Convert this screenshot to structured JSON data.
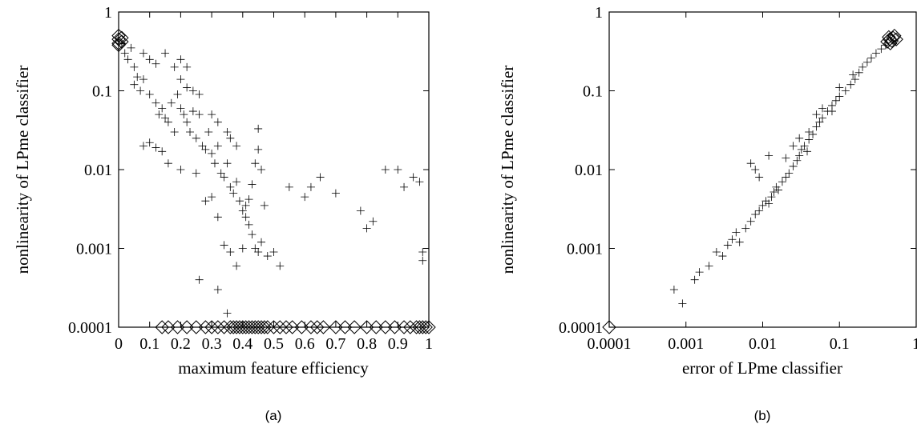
{
  "chart_data": [
    {
      "type": "scatter",
      "panel": "a",
      "caption": "(a)",
      "xlabel": "maximum feature efficiency",
      "ylabel": "nonlinearity of LPme classifier",
      "xlim": [
        0,
        1
      ],
      "ylim": [
        0.0001,
        1
      ],
      "x_scale": "linear",
      "y_scale": "log",
      "x_ticks": [
        0,
        0.1,
        0.2,
        0.3,
        0.4,
        0.5,
        0.6,
        0.7,
        0.8,
        0.9,
        1
      ],
      "x_tick_labels": [
        "0",
        "0.1",
        "0.2",
        "0.3",
        "0.4",
        "0.5",
        "0.6",
        "0.7",
        "0.8",
        "0.9",
        "1"
      ],
      "y_ticks": [
        0.0001,
        0.001,
        0.01,
        0.1,
        1
      ],
      "y_tick_labels": [
        "0.0001",
        "0.001",
        "0.01",
        "0.1",
        "1"
      ],
      "grid": false,
      "series": [
        {
          "marker": "plus",
          "points": [
            [
              0.01,
              0.4
            ],
            [
              0.02,
              0.3
            ],
            [
              0.03,
              0.25
            ],
            [
              0.04,
              0.35
            ],
            [
              0.05,
              0.2
            ],
            [
              0.06,
              0.15
            ],
            [
              0.08,
              0.3
            ],
            [
              0.1,
              0.25
            ],
            [
              0.12,
              0.22
            ],
            [
              0.15,
              0.3
            ],
            [
              0.18,
              0.2
            ],
            [
              0.2,
              0.25
            ],
            [
              0.22,
              0.2
            ],
            [
              0.05,
              0.12
            ],
            [
              0.07,
              0.1
            ],
            [
              0.08,
              0.14
            ],
            [
              0.1,
              0.09
            ],
            [
              0.12,
              0.07
            ],
            [
              0.13,
              0.05
            ],
            [
              0.14,
              0.06
            ],
            [
              0.15,
              0.045
            ],
            [
              0.16,
              0.04
            ],
            [
              0.17,
              0.07
            ],
            [
              0.18,
              0.03
            ],
            [
              0.19,
              0.09
            ],
            [
              0.2,
              0.06
            ],
            [
              0.21,
              0.05
            ],
            [
              0.22,
              0.04
            ],
            [
              0.23,
              0.03
            ],
            [
              0.24,
              0.055
            ],
            [
              0.25,
              0.025
            ],
            [
              0.26,
              0.05
            ],
            [
              0.27,
              0.02
            ],
            [
              0.28,
              0.018
            ],
            [
              0.29,
              0.03
            ],
            [
              0.3,
              0.016
            ],
            [
              0.31,
              0.012
            ],
            [
              0.32,
              0.02
            ],
            [
              0.33,
              0.009
            ],
            [
              0.34,
              0.008
            ],
            [
              0.35,
              0.012
            ],
            [
              0.36,
              0.006
            ],
            [
              0.37,
              0.005
            ],
            [
              0.38,
              0.007
            ],
            [
              0.39,
              0.004
            ],
            [
              0.4,
              0.003
            ],
            [
              0.41,
              0.0025
            ],
            [
              0.42,
              0.002
            ],
            [
              0.43,
              0.0015
            ],
            [
              0.44,
              0.001
            ],
            [
              0.45,
              0.0009
            ],
            [
              0.46,
              0.0012
            ],
            [
              0.47,
              0.0035
            ],
            [
              0.48,
              0.0008
            ],
            [
              0.5,
              0.0009
            ],
            [
              0.52,
              0.0006
            ],
            [
              0.08,
              0.02
            ],
            [
              0.1,
              0.022
            ],
            [
              0.12,
              0.019
            ],
            [
              0.14,
              0.017
            ],
            [
              0.16,
              0.012
            ],
            [
              0.2,
              0.01
            ],
            [
              0.25,
              0.009
            ],
            [
              0.28,
              0.004
            ],
            [
              0.3,
              0.0045
            ],
            [
              0.32,
              0.0025
            ],
            [
              0.34,
              0.0011
            ],
            [
              0.36,
              0.0009
            ],
            [
              0.26,
              0.0004
            ],
            [
              0.32,
              0.0003
            ],
            [
              0.35,
              0.00015
            ],
            [
              0.38,
              0.0006
            ],
            [
              0.4,
              0.001
            ],
            [
              0.41,
              0.0035
            ],
            [
              0.42,
              0.0042
            ],
            [
              0.45,
              0.033
            ],
            [
              0.45,
              0.018
            ],
            [
              0.44,
              0.012
            ],
            [
              0.43,
              0.0065
            ],
            [
              0.46,
              0.01
            ],
            [
              0.2,
              0.14
            ],
            [
              0.22,
              0.11
            ],
            [
              0.24,
              0.1
            ],
            [
              0.26,
              0.09
            ],
            [
              0.3,
              0.05
            ],
            [
              0.32,
              0.04
            ],
            [
              0.35,
              0.03
            ],
            [
              0.36,
              0.025
            ],
            [
              0.38,
              0.02
            ],
            [
              0.55,
              0.006
            ],
            [
              0.6,
              0.0045
            ],
            [
              0.62,
              0.006
            ],
            [
              0.65,
              0.008
            ],
            [
              0.7,
              0.005
            ],
            [
              0.78,
              0.003
            ],
            [
              0.8,
              0.0018
            ],
            [
              0.82,
              0.0022
            ],
            [
              0.86,
              0.01
            ],
            [
              0.9,
              0.01
            ],
            [
              0.92,
              0.006
            ],
            [
              0.95,
              0.008
            ],
            [
              0.97,
              0.007
            ],
            [
              0.98,
              0.0009
            ],
            [
              0.98,
              0.0007
            ]
          ]
        },
        {
          "marker": "diamond",
          "points": [
            [
              0.14,
              0.0001
            ],
            [
              0.16,
              0.0001
            ],
            [
              0.19,
              0.0001
            ],
            [
              0.22,
              0.0001
            ],
            [
              0.25,
              0.0001
            ],
            [
              0.28,
              0.0001
            ],
            [
              0.3,
              0.0001
            ],
            [
              0.32,
              0.0001
            ],
            [
              0.34,
              0.0001
            ],
            [
              0.36,
              0.0001
            ],
            [
              0.37,
              0.0001
            ],
            [
              0.38,
              0.0001
            ],
            [
              0.39,
              0.0001
            ],
            [
              0.4,
              0.0001
            ],
            [
              0.41,
              0.0001
            ],
            [
              0.42,
              0.0001
            ],
            [
              0.43,
              0.0001
            ],
            [
              0.44,
              0.0001
            ],
            [
              0.45,
              0.0001
            ],
            [
              0.46,
              0.0001
            ],
            [
              0.47,
              0.0001
            ],
            [
              0.48,
              0.0001
            ],
            [
              0.5,
              0.0001
            ],
            [
              0.52,
              0.0001
            ],
            [
              0.54,
              0.0001
            ],
            [
              0.56,
              0.0001
            ],
            [
              0.59,
              0.0001
            ],
            [
              0.62,
              0.0001
            ],
            [
              0.64,
              0.0001
            ],
            [
              0.66,
              0.0001
            ],
            [
              0.7,
              0.0001
            ],
            [
              0.73,
              0.0001
            ],
            [
              0.76,
              0.0001
            ],
            [
              0.8,
              0.0001
            ],
            [
              0.83,
              0.0001
            ],
            [
              0.86,
              0.0001
            ],
            [
              0.89,
              0.0001
            ],
            [
              0.92,
              0.0001
            ],
            [
              0.94,
              0.0001
            ],
            [
              0.96,
              0.0001
            ],
            [
              0.97,
              0.0001
            ],
            [
              0.98,
              0.0001
            ],
            [
              0.99,
              0.0001
            ],
            [
              1.0,
              0.0001
            ],
            [
              0.0,
              0.45
            ],
            [
              0.0,
              0.4
            ],
            [
              0.0,
              0.5
            ],
            [
              0.01,
              0.42
            ],
            [
              0.01,
              0.47
            ],
            [
              0.0,
              0.38
            ]
          ]
        }
      ]
    },
    {
      "type": "scatter",
      "panel": "b",
      "caption": "(b)",
      "xlabel": "error of LPme classifier",
      "ylabel": "nonlinearity of LPme classifier",
      "xlim": [
        0.0001,
        1
      ],
      "ylim": [
        0.0001,
        1
      ],
      "x_scale": "log",
      "y_scale": "log",
      "x_ticks": [
        0.0001,
        0.001,
        0.01,
        0.1,
        1
      ],
      "x_tick_labels": [
        "0.0001",
        "0.001",
        "0.01",
        "0.1",
        "1"
      ],
      "y_ticks": [
        0.0001,
        0.001,
        0.01,
        0.1,
        1
      ],
      "y_tick_labels": [
        "0.0001",
        "0.001",
        "0.01",
        "0.1",
        "1"
      ],
      "grid": false,
      "series": [
        {
          "marker": "plus",
          "points": [
            [
              0.0007,
              0.0003
            ],
            [
              0.0009,
              0.0002
            ],
            [
              0.0013,
              0.0004
            ],
            [
              0.0015,
              0.0005
            ],
            [
              0.002,
              0.0006
            ],
            [
              0.0025,
              0.0009
            ],
            [
              0.003,
              0.0008
            ],
            [
              0.0035,
              0.0011
            ],
            [
              0.004,
              0.0013
            ],
            [
              0.0045,
              0.0016
            ],
            [
              0.005,
              0.0012
            ],
            [
              0.006,
              0.0018
            ],
            [
              0.007,
              0.0022
            ],
            [
              0.008,
              0.0027
            ],
            [
              0.009,
              0.003
            ],
            [
              0.01,
              0.0035
            ],
            [
              0.011,
              0.004
            ],
            [
              0.012,
              0.0037
            ],
            [
              0.013,
              0.0045
            ],
            [
              0.014,
              0.0052
            ],
            [
              0.015,
              0.006
            ],
            [
              0.016,
              0.0055
            ],
            [
              0.018,
              0.007
            ],
            [
              0.02,
              0.008
            ],
            [
              0.022,
              0.009
            ],
            [
              0.025,
              0.011
            ],
            [
              0.028,
              0.013
            ],
            [
              0.03,
              0.015
            ],
            [
              0.032,
              0.018
            ],
            [
              0.035,
              0.02
            ],
            [
              0.038,
              0.017
            ],
            [
              0.04,
              0.024
            ],
            [
              0.045,
              0.028
            ],
            [
              0.05,
              0.035
            ],
            [
              0.055,
              0.04
            ],
            [
              0.06,
              0.045
            ],
            [
              0.07,
              0.055
            ],
            [
              0.08,
              0.065
            ],
            [
              0.09,
              0.075
            ],
            [
              0.1,
              0.085
            ],
            [
              0.12,
              0.1
            ],
            [
              0.14,
              0.12
            ],
            [
              0.16,
              0.14
            ],
            [
              0.18,
              0.17
            ],
            [
              0.2,
              0.2
            ],
            [
              0.23,
              0.23
            ],
            [
              0.26,
              0.26
            ],
            [
              0.3,
              0.3
            ],
            [
              0.35,
              0.34
            ],
            [
              0.4,
              0.38
            ],
            [
              0.007,
              0.012
            ],
            [
              0.008,
              0.01
            ],
            [
              0.009,
              0.008
            ],
            [
              0.012,
              0.015
            ],
            [
              0.02,
              0.014
            ],
            [
              0.025,
              0.02
            ],
            [
              0.03,
              0.025
            ],
            [
              0.04,
              0.03
            ],
            [
              0.05,
              0.05
            ],
            [
              0.06,
              0.06
            ],
            [
              0.08,
              0.055
            ],
            [
              0.1,
              0.11
            ],
            [
              0.15,
              0.16
            ]
          ]
        },
        {
          "marker": "diamond",
          "points": [
            [
              0.42,
              0.42
            ],
            [
              0.45,
              0.45
            ],
            [
              0.48,
              0.43
            ],
            [
              0.5,
              0.47
            ],
            [
              0.52,
              0.5
            ],
            [
              0.46,
              0.4
            ],
            [
              0.44,
              0.48
            ],
            [
              0.55,
              0.45
            ],
            [
              0.0001,
              0.0001
            ]
          ]
        }
      ]
    }
  ]
}
